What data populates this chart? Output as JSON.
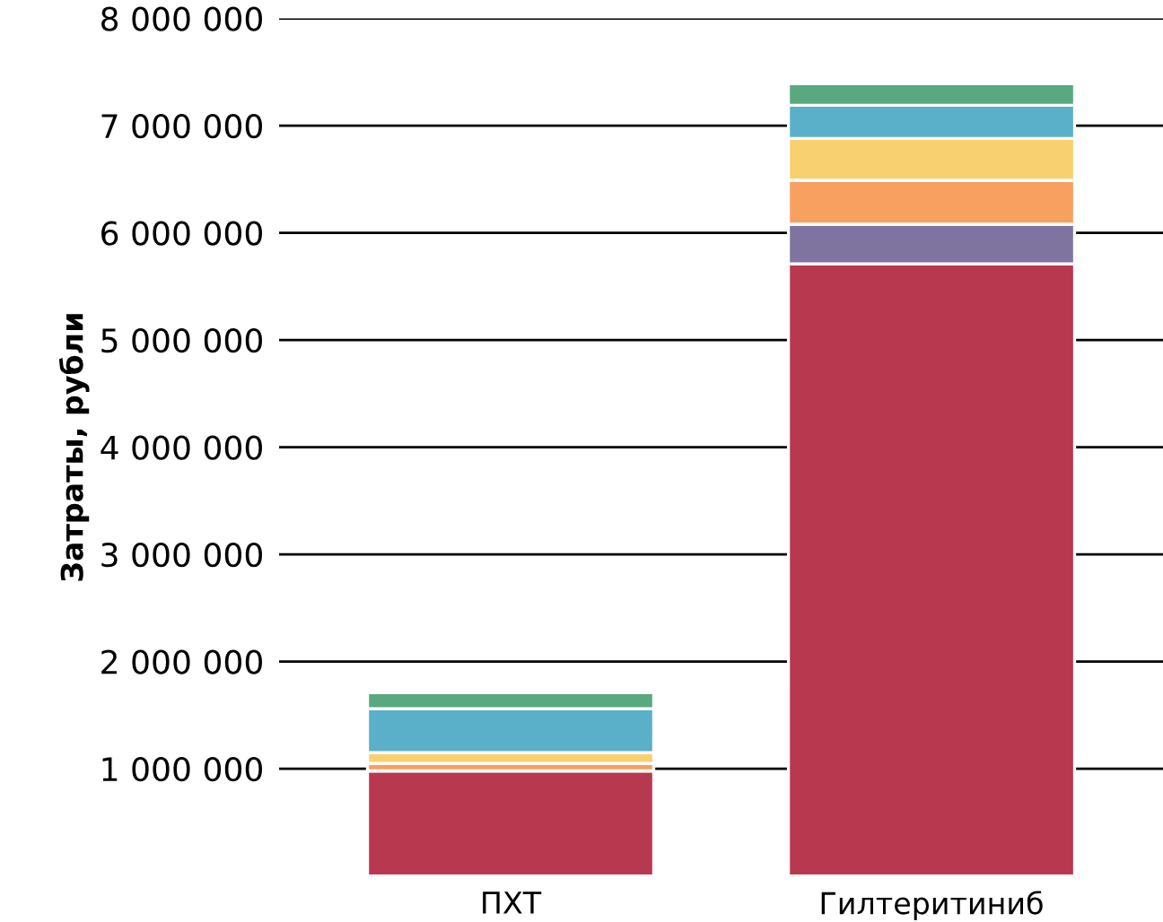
{
  "chart_data": {
    "type": "bar",
    "stacked": true,
    "ylabel": "Затраты, рубли",
    "categories": [
      "ПХТ",
      "Гилтеритиниб"
    ],
    "series": [
      {
        "color": "#b83850",
        "values": [
          980000,
          5710000
        ]
      },
      {
        "color": "#7f74a0",
        "values": [
          0,
          370000
        ]
      },
      {
        "color": "#f7a060",
        "values": [
          70000,
          410000
        ]
      },
      {
        "color": "#f8d070",
        "values": [
          100000,
          390000
        ]
      },
      {
        "color": "#5ab0c8",
        "values": [
          410000,
          310000
        ]
      },
      {
        "color": "#5aa880",
        "values": [
          150000,
          200000
        ]
      }
    ],
    "ylim": [
      0,
      8000000
    ],
    "yticks": [
      {
        "value": 1000000,
        "label": "1 000 000"
      },
      {
        "value": 2000000,
        "label": "2 000 000"
      },
      {
        "value": 3000000,
        "label": "3 000 000"
      },
      {
        "value": 4000000,
        "label": "4 000 000"
      },
      {
        "value": 5000000,
        "label": "5 000 000"
      },
      {
        "value": 6000000,
        "label": "6 000 000"
      },
      {
        "value": 7000000,
        "label": "7 000 000"
      },
      {
        "value": 8000000,
        "label": "8 000 000"
      }
    ],
    "grid": "y"
  }
}
